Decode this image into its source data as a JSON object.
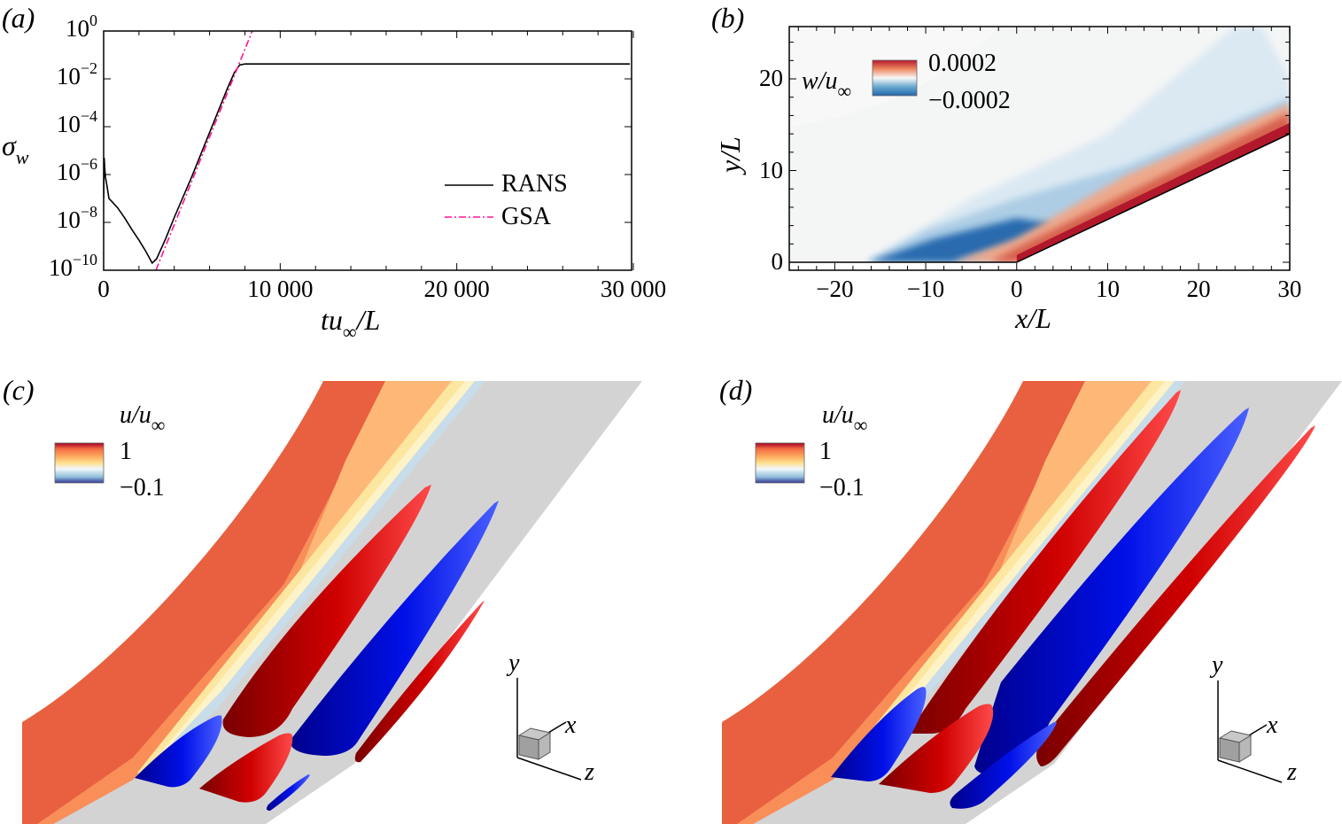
{
  "panels": {
    "a": {
      "label": "(a)"
    },
    "b": {
      "label": "(b)"
    },
    "c": {
      "label": "(c)",
      "colorbar": {
        "var": "u",
        "sep": "/u",
        "sub": "∞",
        "max": "1",
        "min": "−0.1"
      },
      "triad": {
        "x": "x",
        "y": "y",
        "z": "z"
      }
    },
    "d": {
      "label": "(d)",
      "colorbar": {
        "var": "u",
        "sep": "/u",
        "sub": "∞",
        "max": "1",
        "min": "−0.1"
      },
      "triad": {
        "x": "x",
        "y": "y",
        "z": "z"
      }
    }
  },
  "colors": {
    "rans": "#000000",
    "gsa": "#ff1493",
    "positive": "#d40000",
    "negative": "#0000e6",
    "surface": "#d3d3d3"
  },
  "chart_data": [
    {
      "panel": "a",
      "type": "line",
      "xlabel": {
        "main": "tu",
        "sub": "∞",
        "tail": "/L"
      },
      "ylabel": {
        "main": "σ",
        "sub": "w"
      },
      "xlim": [
        0,
        30000
      ],
      "ylim": [
        1e-10,
        1
      ],
      "yscale": "log",
      "grid": false,
      "legend_placement": "center-right",
      "x_ticks": [
        "0",
        "10 000",
        "20 000",
        "30 000"
      ],
      "x_tick_values": [
        0,
        10000,
        20000,
        30000
      ],
      "y_ticks": [
        {
          "base": "10",
          "exp": "0",
          "value": 1
        },
        {
          "base": "10",
          "exp": "−2",
          "value": 0.01
        },
        {
          "base": "10",
          "exp": "−4",
          "value": 0.0001
        },
        {
          "base": "10",
          "exp": "−6",
          "value": 1e-06
        },
        {
          "base": "10",
          "exp": "−8",
          "value": 1e-08
        },
        {
          "base": "10",
          "exp": "−10",
          "value": 1e-10
        }
      ],
      "series": [
        {
          "name": "RANS",
          "style": "solid",
          "color": "#000000",
          "x": [
            0,
            30,
            60,
            100,
            200,
            300,
            500,
            800,
            1200,
            1600,
            2000,
            2400,
            2750,
            3000,
            3500,
            4000,
            5000,
            6000,
            7000,
            7400,
            7700,
            8000,
            10000,
            20000,
            29800
          ],
          "y": [
            1e-07,
            5e-06,
            2e-06,
            8e-07,
            3e-07,
            1e-07,
            7e-08,
            4e-08,
            1.5e-08,
            5e-09,
            1.8e-09,
            6e-10,
            2e-10,
            3e-10,
            2e-09,
            1.6e-08,
            8.5e-07,
            5.7e-05,
            0.0038,
            0.018,
            0.038,
            0.042,
            0.042,
            0.042,
            0.042
          ]
        },
        {
          "name": "GSA",
          "style": "dash-dot",
          "color": "#ff1493",
          "x": [
            2960,
            8420
          ],
          "y": [
            1e-10,
            1
          ]
        }
      ]
    },
    {
      "panel": "b",
      "type": "heatmap",
      "xlabel": {
        "main": "x",
        "tail": "/L"
      },
      "ylabel": {
        "main": "y",
        "tail": "/L"
      },
      "xlim": [
        -25,
        30
      ],
      "ylim": [
        -0.9,
        25.7
      ],
      "x_ticks": [
        "−20",
        "−10",
        "0",
        "10",
        "20",
        "30"
      ],
      "x_tick_values": [
        -20,
        -10,
        0,
        10,
        20,
        30
      ],
      "y_ticks": [
        "0",
        "10",
        "20"
      ],
      "y_tick_values": [
        0,
        10,
        20
      ],
      "colorbar": {
        "var": "w",
        "sep": "/u",
        "sub": "∞",
        "max": "0.0002",
        "min": "−0.0002",
        "colormap": "blue-white-red"
      },
      "wall": [
        [
          -25,
          0
        ],
        [
          0,
          0
        ],
        [
          30,
          14
        ]
      ]
    }
  ]
}
